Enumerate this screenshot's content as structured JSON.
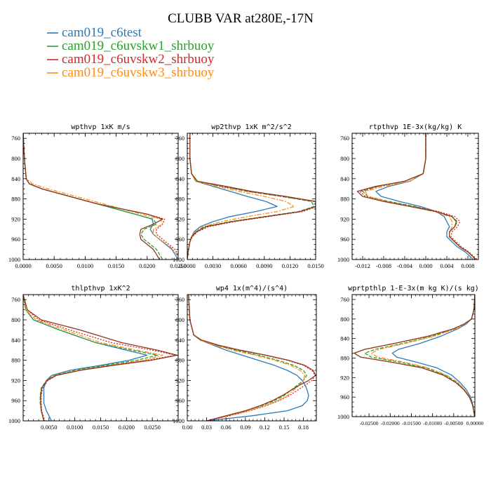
{
  "title": "CLUBB VAR at280E,-17N",
  "legend": [
    {
      "label": "cam019_c6test",
      "color": "#2a7ab9",
      "dash": ""
    },
    {
      "label": "cam019_c6uvskw1_shrbuoy",
      "color": "#2ca02c",
      "dash": "5,2"
    },
    {
      "label": "cam019_c6uvskw2_shrbuoy",
      "color": "#d62728",
      "dash": "2,2"
    },
    {
      "label": "cam019_c6uvskw3_shrbuoy",
      "color": "#ff8c1a",
      "dash": "6,2,2,2"
    }
  ],
  "extra_color": "#8b3a1e",
  "chart_data": [
    {
      "type": "line",
      "title": "wpthvp  1xK m/s",
      "xlim": [
        0,
        0.025
      ],
      "ylim": [
        1000,
        750
      ],
      "xticks": [
        0.0,
        0.005,
        0.01,
        0.015,
        0.02,
        0.025
      ],
      "xtick_labels": [
        "0.0000",
        "0.0050",
        "0.0100",
        "0.0150",
        "0.0200",
        "0.0250"
      ],
      "yticks": [
        760,
        800,
        840,
        880,
        920,
        960,
        1000
      ],
      "y": [
        750,
        800,
        840,
        850,
        860,
        870,
        880,
        890,
        900,
        910,
        920,
        930,
        940,
        950,
        960,
        970,
        980,
        990,
        1000
      ],
      "series": [
        {
          "x": [
            0,
            0.0002,
            0.0005,
            0.001,
            0.003,
            0.006,
            0.009,
            0.012,
            0.015,
            0.018,
            0.0208,
            0.021,
            0.0205,
            0.021,
            0.022,
            0.023,
            0.024,
            0.0245,
            0.025
          ]
        },
        {
          "x": [
            0,
            0.0002,
            0.0005,
            0.001,
            0.003,
            0.006,
            0.009,
            0.012,
            0.015,
            0.018,
            0.021,
            0.0215,
            0.0195,
            0.019,
            0.0195,
            0.0205,
            0.0215,
            0.022,
            0.0225
          ]
        },
        {
          "x": [
            0,
            0.0002,
            0.0005,
            0.001,
            0.003,
            0.006,
            0.009,
            0.012,
            0.016,
            0.02,
            0.0228,
            0.0225,
            0.0215,
            0.0215,
            0.0225,
            0.0235,
            0.0245,
            0.025,
            0.0255
          ]
        },
        {
          "x": [
            0,
            0.0002,
            0.0005,
            0.0015,
            0.004,
            0.007,
            0.01,
            0.013,
            0.016,
            0.019,
            0.0222,
            0.0225,
            0.021,
            0.021,
            0.022,
            0.0232,
            0.0242,
            0.0248,
            0.0252
          ]
        },
        {
          "x": [
            0,
            0.0002,
            0.0005,
            0.001,
            0.003,
            0.006,
            0.009,
            0.012,
            0.016,
            0.02,
            0.0225,
            0.021,
            0.019,
            0.0188,
            0.019,
            0.02,
            0.021,
            0.0215,
            0.022
          ]
        }
      ]
    },
    {
      "type": "line",
      "title": "wp2thvp  1xK m^2/s^2",
      "xlim": [
        0,
        0.015
      ],
      "ylim": [
        1000,
        750
      ],
      "xticks": [
        0.0,
        0.003,
        0.006,
        0.009,
        0.012,
        0.015
      ],
      "xtick_labels": [
        "0.0000",
        "0.0030",
        "0.0060",
        "0.0090",
        "0.0120",
        "0.0150"
      ],
      "yticks": [
        760,
        800,
        840,
        880,
        920,
        960,
        1000
      ],
      "y": [
        750,
        800,
        830,
        845,
        855,
        865,
        875,
        885,
        895,
        905,
        915,
        925,
        935,
        945,
        955,
        965,
        975,
        985,
        1000
      ],
      "series": [
        {
          "x": [
            0.0003,
            0.0003,
            0.0005,
            0.001,
            0.003,
            0.005,
            0.007,
            0.0092,
            0.0105,
            0.008,
            0.005,
            0.003,
            0.0015,
            0.0008,
            0.0005,
            0.0003,
            0.0002,
            0.0001,
            0
          ]
        },
        {
          "x": [
            0.0003,
            0.0003,
            0.0005,
            0.001,
            0.004,
            0.007,
            0.011,
            0.0145,
            0.0148,
            0.013,
            0.009,
            0.005,
            0.002,
            0.001,
            0.0005,
            0.0003,
            0.0002,
            0.0001,
            0
          ]
        },
        {
          "x": [
            0.0003,
            0.0003,
            0.0005,
            0.001,
            0.004,
            0.007,
            0.011,
            0.0148,
            0.0152,
            0.0135,
            0.0095,
            0.0055,
            0.0025,
            0.0012,
            0.0006,
            0.0003,
            0.0002,
            0.0001,
            0
          ]
        },
        {
          "x": [
            0.0003,
            0.0003,
            0.0005,
            0.001,
            0.0035,
            0.006,
            0.009,
            0.0115,
            0.0125,
            0.0105,
            0.007,
            0.004,
            0.0018,
            0.0009,
            0.0005,
            0.0003,
            0.0002,
            0.0001,
            0
          ]
        },
        {
          "x": [
            0.0003,
            0.0003,
            0.0005,
            0.0012,
            0.0045,
            0.0075,
            0.0115,
            0.015,
            0.015,
            0.0132,
            0.0092,
            0.0052,
            0.0022,
            0.0011,
            0.0005,
            0.0003,
            0.0002,
            0.0001,
            0
          ]
        }
      ]
    },
    {
      "type": "line",
      "title": "rtpthvp  1E-3x(kg/kg) K",
      "xlim": [
        -0.014,
        0.01
      ],
      "ylim": [
        1000,
        750
      ],
      "xticks": [
        -0.012,
        -0.008,
        -0.004,
        0.0,
        0.004,
        0.008
      ],
      "xtick_labels": [
        "-0.012",
        "-0.008",
        "-0.004",
        "0.000",
        "0.004",
        "0.008"
      ],
      "yticks": [
        760,
        800,
        840,
        880,
        920,
        960,
        1000
      ],
      "y": [
        750,
        800,
        830,
        845,
        855,
        865,
        875,
        885,
        895,
        905,
        915,
        925,
        935,
        945,
        955,
        965,
        975,
        985,
        1000
      ],
      "series": [
        {
          "x": [
            0,
            0,
            -0.0005,
            -0.003,
            -0.007,
            -0.0095,
            -0.0085,
            -0.005,
            -0.001,
            0.002,
            0.0035,
            0.004,
            0.0045,
            0.004,
            0.004,
            0.005,
            0.006,
            0.0075,
            0.009
          ]
        },
        {
          "x": [
            0,
            0,
            -0.0005,
            -0.004,
            -0.009,
            -0.012,
            -0.011,
            -0.007,
            -0.002,
            0.002,
            0.005,
            0.006,
            0.0055,
            0.0045,
            0.0045,
            0.0055,
            0.0065,
            0.008,
            0.0095
          ]
        },
        {
          "x": [
            0,
            0,
            -0.0005,
            -0.004,
            -0.009,
            -0.0125,
            -0.0115,
            -0.0075,
            -0.0025,
            0.0025,
            0.0055,
            0.0065,
            0.006,
            0.005,
            0.0048,
            0.0058,
            0.0068,
            0.0082,
            0.0098
          ]
        },
        {
          "x": [
            0,
            0,
            -0.0005,
            -0.003,
            -0.008,
            -0.0115,
            -0.011,
            -0.0075,
            -0.003,
            0.0015,
            0.0045,
            0.005,
            0.005,
            0.0045,
            0.0045,
            0.0055,
            0.0065,
            0.008,
            0.0095
          ]
        },
        {
          "x": [
            0,
            0,
            -0.0005,
            -0.004,
            -0.0095,
            -0.013,
            -0.012,
            -0.008,
            -0.003,
            0.002,
            0.005,
            0.0058,
            0.0055,
            0.0045,
            0.0045,
            0.0055,
            0.0065,
            0.008,
            0.0095
          ]
        }
      ]
    },
    {
      "type": "line",
      "title": "thlpthvp  1xK^2",
      "xlim": [
        0,
        0.03
      ],
      "ylim": [
        1000,
        750
      ],
      "xticks": [
        0.005,
        0.01,
        0.015,
        0.02,
        0.025
      ],
      "xtick_labels": [
        "0.0050",
        "0.0100",
        "0.0150",
        "0.0200",
        "0.0250"
      ],
      "yticks": [
        760,
        800,
        840,
        880,
        920,
        960,
        1000
      ],
      "y": [
        750,
        780,
        800,
        820,
        845,
        860,
        870,
        880,
        890,
        900,
        910,
        920,
        935,
        950,
        965,
        980,
        1000
      ],
      "series": [
        {
          "x": [
            0,
            0.0005,
            0.002,
            0.007,
            0.014,
            0.02,
            0.024,
            0.0205,
            0.015,
            0.009,
            0.0055,
            0.0045,
            0.004,
            0.004,
            0.004,
            0.0045,
            0.0055
          ]
        },
        {
          "x": [
            0,
            0.0005,
            0.002,
            0.007,
            0.014,
            0.021,
            0.026,
            0.022,
            0.016,
            0.01,
            0.006,
            0.0045,
            0.0035,
            0.0033,
            0.0033,
            0.0035,
            0.004
          ]
        },
        {
          "x": [
            0,
            0.0008,
            0.003,
            0.009,
            0.017,
            0.025,
            0.0295,
            0.024,
            0.017,
            0.011,
            0.0065,
            0.0048,
            0.0038,
            0.0035,
            0.0035,
            0.0036,
            0.0042
          ]
        },
        {
          "x": [
            0,
            0.0005,
            0.0025,
            0.008,
            0.015,
            0.022,
            0.027,
            0.0235,
            0.017,
            0.0105,
            0.0062,
            0.0046,
            0.0036,
            0.0034,
            0.0034,
            0.0035,
            0.004
          ]
        },
        {
          "x": [
            0,
            0.0008,
            0.0035,
            0.011,
            0.019,
            0.026,
            0.0298,
            0.0248,
            0.0175,
            0.011,
            0.0064,
            0.0046,
            0.0036,
            0.0034,
            0.0034,
            0.0035,
            0.004
          ]
        }
      ]
    },
    {
      "type": "line",
      "title": "wp4  1x(m^4)/(s^4)",
      "xlim": [
        0,
        0.2
      ],
      "ylim": [
        1000,
        750
      ],
      "xticks": [
        0.0,
        0.03,
        0.06,
        0.09,
        0.12,
        0.15,
        0.18
      ],
      "xtick_labels": [
        "0.00",
        "0.03",
        "0.06",
        "0.09",
        "0.12",
        "0.15",
        "0.18"
      ],
      "yticks": [
        760,
        800,
        840,
        880,
        920,
        960,
        1000
      ],
      "y": [
        750,
        800,
        830,
        840,
        850,
        860,
        870,
        880,
        890,
        900,
        910,
        920,
        930,
        940,
        950,
        960,
        970,
        980,
        990,
        1000
      ],
      "series": [
        {
          "x": [
            0.002,
            0.004,
            0.01,
            0.02,
            0.04,
            0.06,
            0.085,
            0.11,
            0.135,
            0.155,
            0.17,
            0.178,
            0.183,
            0.186,
            0.188,
            0.186,
            0.178,
            0.155,
            0.1,
            0.03
          ]
        },
        {
          "x": [
            0.002,
            0.004,
            0.01,
            0.02,
            0.045,
            0.075,
            0.11,
            0.14,
            0.165,
            0.18,
            0.185,
            0.18,
            0.17,
            0.16,
            0.15,
            0.135,
            0.115,
            0.09,
            0.06,
            0.03
          ]
        },
        {
          "x": [
            0.002,
            0.004,
            0.01,
            0.02,
            0.045,
            0.08,
            0.12,
            0.155,
            0.18,
            0.193,
            0.198,
            0.193,
            0.182,
            0.17,
            0.158,
            0.142,
            0.122,
            0.097,
            0.065,
            0.03
          ]
        },
        {
          "x": [
            0.002,
            0.004,
            0.01,
            0.02,
            0.042,
            0.07,
            0.105,
            0.135,
            0.16,
            0.175,
            0.182,
            0.18,
            0.173,
            0.164,
            0.155,
            0.14,
            0.12,
            0.095,
            0.063,
            0.03
          ]
        },
        {
          "x": [
            0.002,
            0.004,
            0.01,
            0.022,
            0.048,
            0.082,
            0.122,
            0.157,
            0.182,
            0.195,
            0.199,
            0.188,
            0.173,
            0.16,
            0.147,
            0.132,
            0.113,
            0.09,
            0.06,
            0.03
          ]
        }
      ]
    },
    {
      "type": "line",
      "title": "wprtpthlp  1-E-3x(m kg K)/(s kg)",
      "xlim": [
        -0.029,
        0.0
      ],
      "ylim": [
        1000,
        750
      ],
      "xticks": [
        -0.025,
        -0.02,
        -0.015,
        -0.01,
        -0.005,
        0.0
      ],
      "xtick_labels": [
        "-0.02500",
        "-0.02000",
        "-0.01500",
        "-0.01000",
        "-0.00500",
        "0.00000"
      ],
      "yticks": [
        760,
        800,
        840,
        880,
        920,
        960,
        1000
      ],
      "y": [
        750,
        780,
        800,
        810,
        820,
        835,
        850,
        862,
        870,
        878,
        888,
        900,
        915,
        930,
        945,
        960,
        975,
        990,
        1000
      ],
      "series": [
        {
          "x": [
            0,
            -0.0002,
            -0.0008,
            -0.002,
            -0.004,
            -0.008,
            -0.013,
            -0.018,
            -0.0195,
            -0.0185,
            -0.014,
            -0.009,
            -0.0055,
            -0.0035,
            -0.002,
            -0.001,
            -0.0005,
            -0.0002,
            -0.0001
          ]
        },
        {
          "x": [
            0,
            -0.0002,
            -0.0008,
            -0.0025,
            -0.005,
            -0.01,
            -0.017,
            -0.0235,
            -0.026,
            -0.0245,
            -0.018,
            -0.0115,
            -0.007,
            -0.0042,
            -0.0025,
            -0.0012,
            -0.0006,
            -0.0002,
            -0.0001
          ]
        },
        {
          "x": [
            0,
            -0.0002,
            -0.0008,
            -0.0025,
            -0.005,
            -0.011,
            -0.019,
            -0.026,
            -0.0285,
            -0.027,
            -0.02,
            -0.0125,
            -0.0075,
            -0.0045,
            -0.0026,
            -0.0013,
            -0.0006,
            -0.0002,
            -0.0001
          ]
        },
        {
          "x": [
            0,
            -0.0002,
            -0.0008,
            -0.0022,
            -0.0045,
            -0.0095,
            -0.0165,
            -0.0225,
            -0.0245,
            -0.023,
            -0.017,
            -0.011,
            -0.0067,
            -0.004,
            -0.0024,
            -0.0012,
            -0.0006,
            -0.0002,
            -0.0001
          ]
        },
        {
          "x": [
            0,
            -0.0002,
            -0.0008,
            -0.0025,
            -0.005,
            -0.011,
            -0.019,
            -0.026,
            -0.0285,
            -0.027,
            -0.02,
            -0.0125,
            -0.0075,
            -0.0045,
            -0.0026,
            -0.0013,
            -0.0006,
            -0.0002,
            -0.0001
          ]
        }
      ]
    }
  ]
}
